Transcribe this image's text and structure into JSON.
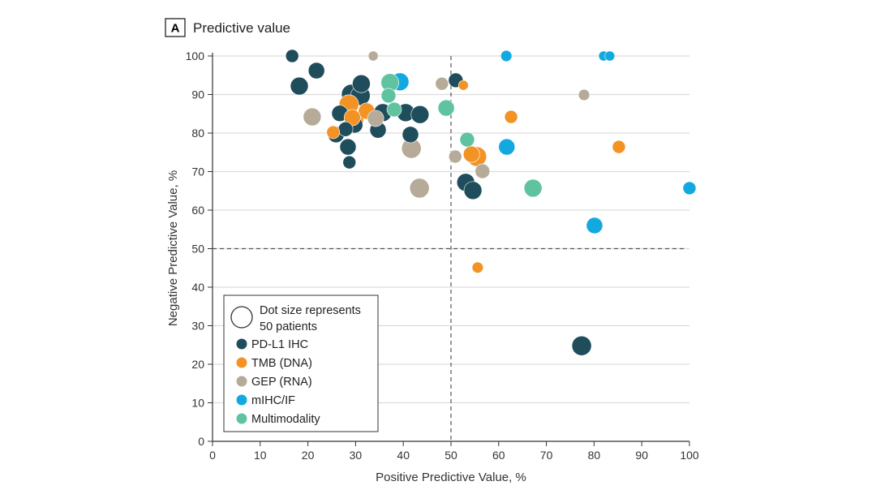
{
  "panel": {
    "letter": "A",
    "title": "Predictive value"
  },
  "chart_data": {
    "type": "scatter",
    "xlabel": "Positive Predictive Value, %",
    "ylabel": "Negative Predictive Value, %",
    "xlim": [
      0,
      100
    ],
    "ylim": [
      0,
      100
    ],
    "xticks": [
      0,
      10,
      20,
      30,
      40,
      50,
      60,
      70,
      80,
      90,
      100
    ],
    "yticks": [
      0,
      10,
      20,
      30,
      40,
      50,
      60,
      70,
      80,
      90,
      100
    ],
    "grid": "horizontal",
    "reference_lines": {
      "x": 50,
      "y": 50
    },
    "legend_position": "bottom-left",
    "size_legend": {
      "label": "Dot size represents 50 patients",
      "label_line1": "Dot size represents",
      "label_line2": "50 patients",
      "n": 50
    },
    "series": [
      {
        "name": "PD-L1 IHC",
        "color": "#1f4d5c",
        "points": [
          [
            16.7,
            100,
            19
          ],
          [
            21.8,
            96.2,
            30
          ],
          [
            18.2,
            92.2,
            36
          ],
          [
            25.9,
            79.6,
            30
          ],
          [
            28.4,
            76.4,
            30
          ],
          [
            26.7,
            85.1,
            30
          ],
          [
            28.7,
            72.4,
            19
          ],
          [
            31.2,
            92.8,
            36
          ],
          [
            29.1,
            90.1,
            43
          ],
          [
            31.0,
            89.7,
            43
          ],
          [
            29.8,
            82.1,
            30
          ],
          [
            27.9,
            81.0,
            24
          ],
          [
            34.7,
            80.8,
            30
          ],
          [
            35.7,
            85.3,
            36
          ],
          [
            41.5,
            79.6,
            30
          ],
          [
            40.5,
            85.3,
            36
          ],
          [
            43.5,
            84.8,
            36
          ],
          [
            51.0,
            93.7,
            24
          ],
          [
            53.1,
            67.2,
            36
          ],
          [
            54.6,
            65.1,
            36
          ],
          [
            77.4,
            24.8,
            43
          ]
        ]
      },
      {
        "name": "TMB (DNA)",
        "color": "#f39325",
        "points": [
          [
            25.3,
            80.2,
            19
          ],
          [
            28.6,
            87.4,
            43
          ],
          [
            29.8,
            83.4,
            36
          ],
          [
            32.3,
            85.7,
            30
          ],
          [
            29.3,
            84.0,
            30
          ],
          [
            52.6,
            92.4,
            11
          ],
          [
            62.6,
            84.2,
            19
          ],
          [
            54.3,
            74.5,
            30
          ],
          [
            55.4,
            73.9,
            43
          ],
          [
            85.2,
            76.4,
            19
          ],
          [
            55.6,
            45.1,
            14
          ]
        ]
      },
      {
        "name": "GEP (RNA)",
        "color": "#b5ab98",
        "points": [
          [
            33.7,
            100,
            11
          ],
          [
            20.9,
            84.2,
            36
          ],
          [
            34.2,
            83.8,
            30
          ],
          [
            41.7,
            76.0,
            43
          ],
          [
            43.4,
            65.7,
            43
          ],
          [
            48.1,
            92.8,
            19
          ],
          [
            50.9,
            73.9,
            19
          ],
          [
            56.6,
            70.1,
            24
          ],
          [
            77.9,
            89.9,
            14
          ]
        ]
      },
      {
        "name": "mIHC/IF",
        "color": "#12a9e1",
        "points": [
          [
            39.3,
            93.3,
            36
          ],
          [
            61.6,
            100,
            14
          ],
          [
            82.0,
            100,
            11
          ],
          [
            83.3,
            100,
            11
          ],
          [
            61.7,
            76.4,
            30
          ],
          [
            80.1,
            56.0,
            30
          ],
          [
            100,
            65.7,
            19
          ]
        ]
      },
      {
        "name": "Multimodality",
        "color": "#5fc3a0",
        "points": [
          [
            37.2,
            93.1,
            36
          ],
          [
            36.9,
            89.7,
            24
          ],
          [
            38.1,
            86.1,
            24
          ],
          [
            49.0,
            86.5,
            30
          ],
          [
            53.4,
            78.3,
            24
          ],
          [
            67.2,
            65.7,
            36
          ]
        ]
      }
    ]
  }
}
